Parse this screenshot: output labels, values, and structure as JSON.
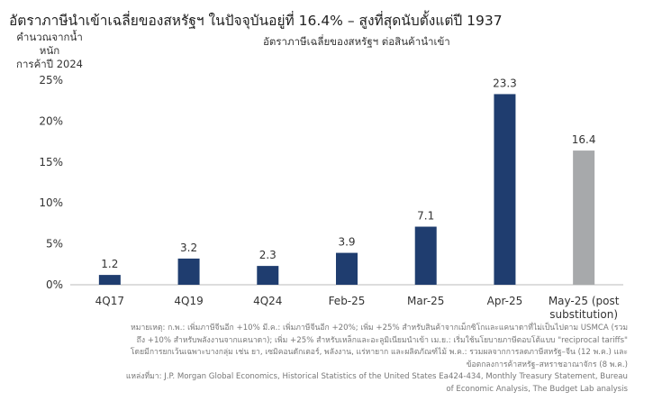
{
  "title": "อัตราภาษีนำเข้าเฉลี่ยของสหรัฐฯ ในปัจจุบันอยู่ที่ 16.4% – สูงที่สุดนับตั้งแต่ปี 1937",
  "chart_data": {
    "type": "bar",
    "title": "อัตราภาษีนำเข้าเฉลี่ยของสหรัฐฯ ในปัจจุบันอยู่ที่ 16.4% – สูงที่สุดนับตั้งแต่ปี 1937",
    "subtitle": "อัตราภาษีเฉลี่ยของสหรัฐฯ ต่อสินค้านำเข้า",
    "ylabel_lines": [
      "คำนวณจากน้ำหนัก",
      "การค้าปี 2024"
    ],
    "xlabel": "",
    "categories": [
      "4Q17",
      "4Q19",
      "4Q24",
      "Feb-25",
      "Mar-25",
      "Apr-25",
      "May-25 (post substitution)"
    ],
    "category_lines": [
      [
        "4Q17"
      ],
      [
        "4Q19"
      ],
      [
        "4Q24"
      ],
      [
        "Feb-25"
      ],
      [
        "Mar-25"
      ],
      [
        "Apr-25"
      ],
      [
        "May-25 (post",
        "substitution)"
      ]
    ],
    "values": [
      1.2,
      3.2,
      2.3,
      3.9,
      7.1,
      23.3,
      16.4
    ],
    "data_labels": [
      "1.2",
      "3.2",
      "2.3",
      "3.9",
      "7.1",
      "23.3",
      "16.4"
    ],
    "bar_colors": [
      "#1f3d6f",
      "#1f3d6f",
      "#1f3d6f",
      "#1f3d6f",
      "#1f3d6f",
      "#1f3d6f",
      "#a7a9ab"
    ],
    "ylim": [
      0,
      25
    ],
    "yticks": [
      0,
      5,
      10,
      15,
      20,
      25
    ],
    "ytick_labels": [
      "0%",
      "5%",
      "10%",
      "15%",
      "20%",
      "25%"
    ],
    "grid": false,
    "legend": "none"
  },
  "notes": [
    "หมายเหตุ: ก.พ.: เพิ่มภาษีจีนอีก +10% มี.ค.: เพิ่มภาษีจีนอีก +20%; เพิ่ม +25% สำหรับสินค้าจากเม็กซิโกและแคนาดาที่ไม่เป็นไปตาม USMCA (รวมถึง +10% สำหรับพลังงานจากแคนาดา); เพิ่ม +25% สำหรับเหล็กและอะลูมิเนียมนำเข้า เม.ย.: เริ่มใช้นโยบายภาษีตอบโต้แบบ \"reciprocal tariffs\" โดยมีการยกเว้นเฉพาะบางกลุ่ม เช่น ยา, เซมิคอนดักเตอร์, พลังงาน, แร่หายาก และผลิตภัณฑ์ไม้ พ.ค.: รวมผลจากการลดภาษีสหรัฐ–จีน (12 พ.ค.) และข้อตกลงการค้าสหรัฐ–สหราชอาณาจักร (8 พ.ค.)",
    "แหล่งที่มา: J.P. Morgan Global Economics, Historical Statistics of the United States Ea424-434, Monthly Treasury Statement, Bureau of Economic Analysis, The Budget Lab analysis"
  ]
}
